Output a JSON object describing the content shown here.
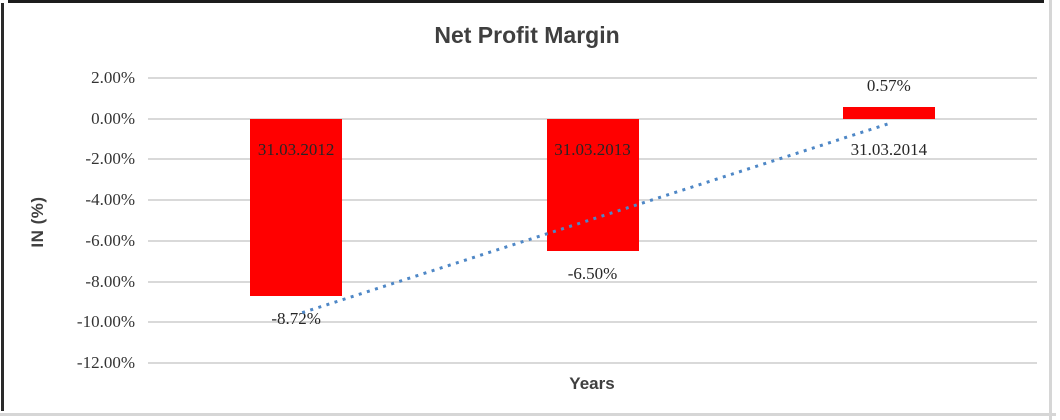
{
  "chart_data": {
    "type": "bar",
    "title": "Net Profit Margin",
    "xlabel": "Years",
    "ylabel": "IN (%)",
    "categories": [
      "31.03.2012",
      "31.03.2013",
      "31.03.2014"
    ],
    "values": [
      -8.72,
      -6.5,
      0.57
    ],
    "data_labels": [
      "-8.72%",
      "-6.50%",
      "0.57%"
    ],
    "y_ticks": [
      {
        "value": 2,
        "label": "2.00%"
      },
      {
        "value": 0,
        "label": "0.00%"
      },
      {
        "value": -2,
        "label": "-2.00%"
      },
      {
        "value": -4,
        "label": "-4.00%"
      },
      {
        "value": -6,
        "label": "-6.00%"
      },
      {
        "value": -8,
        "label": "-8.00%"
      },
      {
        "value": -10,
        "label": "-10.00%"
      },
      {
        "value": -12,
        "label": "-12.00%"
      }
    ],
    "ylim": [
      -12,
      2
    ],
    "grid": true,
    "legend": "none",
    "bar_color": "#ff0000",
    "gridline_color": "#d9d9d9",
    "trendline": {
      "type": "linear",
      "style": "dotted",
      "color": "#4e87c6",
      "start_value": -9.53,
      "end_value": -0.24
    }
  }
}
